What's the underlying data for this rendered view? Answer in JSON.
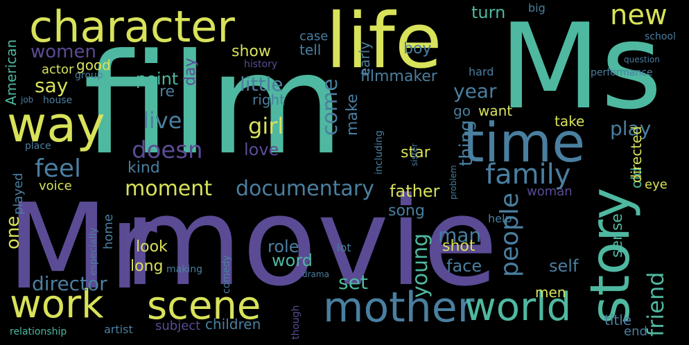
{
  "palette": {
    "yellow": "#d8e25a",
    "lime": "#9fd568",
    "teal": "#4fb8a0",
    "blue": "#4a7fa0",
    "purple": "#5b4b94",
    "dark": "#3a2f62"
  },
  "words": [
    "film",
    "movie",
    "Mr",
    "Ms",
    "life",
    "character",
    "way",
    "story",
    "time",
    "work",
    "scene",
    "mother",
    "world",
    "family",
    "new",
    "documentary",
    "doesn",
    "feel",
    "moment",
    "girl",
    "kind",
    "live",
    "one",
    "women",
    "American",
    "say",
    "show",
    "come",
    "little",
    "year",
    "point",
    "play",
    "friend",
    "father",
    "love",
    "people",
    "director",
    "man",
    "young",
    "face",
    "look",
    "long",
    "role",
    "word",
    "shot",
    "set",
    "self",
    "turn",
    "thing",
    "make",
    "tell",
    "case",
    "boy",
    "early",
    "actor",
    "good",
    "day",
    "re",
    "right",
    "filmmaker",
    "go",
    "want",
    "take",
    "sense",
    "old",
    "directed",
    "woman",
    "voice",
    "played",
    "home",
    "song",
    "star",
    "help",
    "eye",
    "children",
    "subject",
    "men",
    "title",
    "end",
    "artist",
    "relationship",
    "including",
    "history",
    "school",
    "performance",
    "hard",
    "big",
    "comedy",
    "making",
    "especially",
    "lot",
    "place",
    "group",
    "job",
    "house",
    "question",
    "problem",
    "sister",
    "though",
    "drama",
    "early"
  ]
}
